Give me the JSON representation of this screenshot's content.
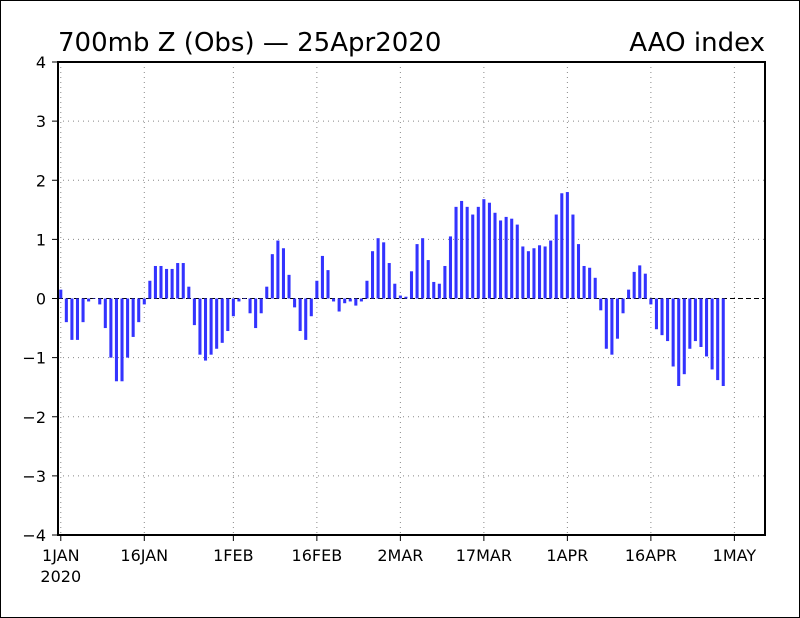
{
  "chart_data": {
    "type": "bar",
    "title_left": "700mb Z (Obs) — 25Apr2020",
    "title_right": "AAO index",
    "xlabel": "",
    "ylabel": "",
    "ylim": [
      -4,
      4
    ],
    "yticks": [
      -4,
      -3,
      -2,
      -1,
      0,
      1,
      2,
      3,
      4
    ],
    "ytick_labels": [
      "−4",
      "−3",
      "−2",
      "−1",
      "0",
      "1",
      "2",
      "3",
      "4"
    ],
    "xticks": [
      {
        "day": 0,
        "label": "1JAN",
        "sublabel": "2020"
      },
      {
        "day": 15,
        "label": "16JAN"
      },
      {
        "day": 31,
        "label": "1FEB"
      },
      {
        "day": 46,
        "label": "16FEB"
      },
      {
        "day": 61,
        "label": "2MAR"
      },
      {
        "day": 76,
        "label": "17MAR"
      },
      {
        "day": 91,
        "label": "1APR"
      },
      {
        "day": 106,
        "label": "16APR"
      },
      {
        "day": 121,
        "label": "1MAY"
      }
    ],
    "x_start": "2019-12-31",
    "x_range_days": [
      -0.5,
      126.5
    ],
    "grid": true,
    "zero_line": "dashed",
    "bar_color": "#3333ff",
    "series": [
      {
        "values": [
          0.15,
          -0.4,
          -0.7,
          -0.7,
          -0.4,
          -0.05,
          0.0,
          -0.1,
          -0.5,
          -1.0,
          -1.4,
          -1.4,
          -1.0,
          -0.65,
          -0.4,
          -0.1,
          0.3,
          0.55,
          0.55,
          0.5,
          0.5,
          0.6,
          0.6,
          0.2,
          -0.45,
          -0.95,
          -1.05,
          -0.95,
          -0.85,
          -0.75,
          -0.55,
          -0.3,
          -0.05,
          0.0,
          -0.25,
          -0.5,
          -0.25,
          0.2,
          0.75,
          0.98,
          0.85,
          0.4,
          -0.15,
          -0.55,
          -0.7,
          -0.3,
          0.3,
          0.72,
          0.48,
          -0.05,
          -0.22,
          -0.08,
          -0.05,
          -0.12,
          -0.05,
          0.3,
          0.8,
          1.02,
          0.95,
          0.6,
          0.25,
          0.05,
          0.03,
          0.46,
          0.92,
          1.02,
          0.65,
          0.28,
          0.25,
          0.55,
          1.05,
          1.55,
          1.65,
          1.55,
          1.42,
          1.55,
          1.68,
          1.62,
          1.45,
          1.32,
          1.38,
          1.35,
          1.25,
          0.88,
          0.8,
          0.85,
          0.9,
          0.88,
          0.98,
          1.42,
          1.78,
          1.8,
          1.42,
          0.92,
          0.55,
          0.52,
          0.35,
          -0.2,
          -0.85,
          -0.95,
          -0.68,
          -0.25,
          0.15,
          0.45,
          0.56,
          0.42,
          -0.1,
          -0.52,
          -0.62,
          -0.72,
          -1.15,
          -1.48,
          -1.28,
          -0.85,
          -0.72,
          -0.82,
          -0.98,
          -1.2,
          -1.38,
          -1.48
        ]
      }
    ]
  }
}
